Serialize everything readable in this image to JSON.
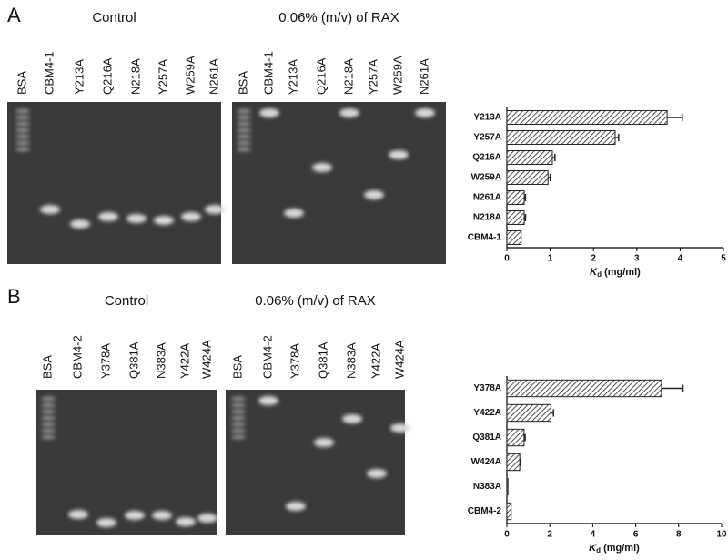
{
  "panels": [
    {
      "label": "A",
      "gels": [
        {
          "title": "Control",
          "lanes": [
            "BSA",
            "CBM4-1",
            "Y213A",
            "Q216A",
            "N218A",
            "Y257A",
            "W259A",
            "N261A"
          ]
        },
        {
          "title": "0.06% (m/v) of RAX",
          "lanes": [
            "BSA",
            "CBM4-1",
            "Y213A",
            "Q216A",
            "N218A",
            "Y257A",
            "W259A",
            "N261A"
          ]
        }
      ]
    },
    {
      "label": "B",
      "gels": [
        {
          "title": "Control",
          "lanes": [
            "BSA",
            "CBM4-2",
            "Y378A",
            "Q381A",
            "N383A",
            "Y422A",
            "W424A"
          ]
        },
        {
          "title": "0.06% (m/v) of RAX",
          "lanes": [
            "BSA",
            "CBM4-2",
            "Y378A",
            "Q381A",
            "N383A",
            "Y422A",
            "W424A"
          ]
        }
      ]
    }
  ],
  "chart_data": [
    {
      "type": "bar",
      "orientation": "horizontal",
      "hatch": true,
      "color": "#222",
      "categories": [
        "Y213A",
        "Y257A",
        "Q216A",
        "W259A",
        "N261A",
        "N218A",
        "CBM4-1"
      ],
      "values": [
        3.7,
        2.5,
        1.05,
        0.95,
        0.4,
        0.4,
        0.33
      ],
      "errors": [
        0.35,
        0.08,
        0.06,
        0.05,
        0.03,
        0.03,
        0
      ],
      "xlim": [
        0,
        5
      ],
      "xticks": [
        0,
        1,
        2,
        3,
        4,
        5
      ],
      "xlabel": {
        "symbol": "K",
        "subscript": "d",
        "unit": "(mg/ml)"
      }
    },
    {
      "type": "bar",
      "orientation": "horizontal",
      "hatch": true,
      "color": "#222",
      "categories": [
        "Y378A",
        "Y422A",
        "Q381A",
        "W424A",
        "N383A",
        "CBM4-2"
      ],
      "values": [
        7.2,
        2.05,
        0.8,
        0.6,
        0.05,
        0.2
      ],
      "errors": [
        1.0,
        0.12,
        0.05,
        0.03,
        0,
        0
      ],
      "xlim": [
        0,
        10
      ],
      "xticks": [
        0,
        2,
        4,
        6,
        8,
        10
      ],
      "xlabel": {
        "symbol": "K",
        "subscript": "d",
        "unit": "(mg/ml)"
      }
    }
  ]
}
